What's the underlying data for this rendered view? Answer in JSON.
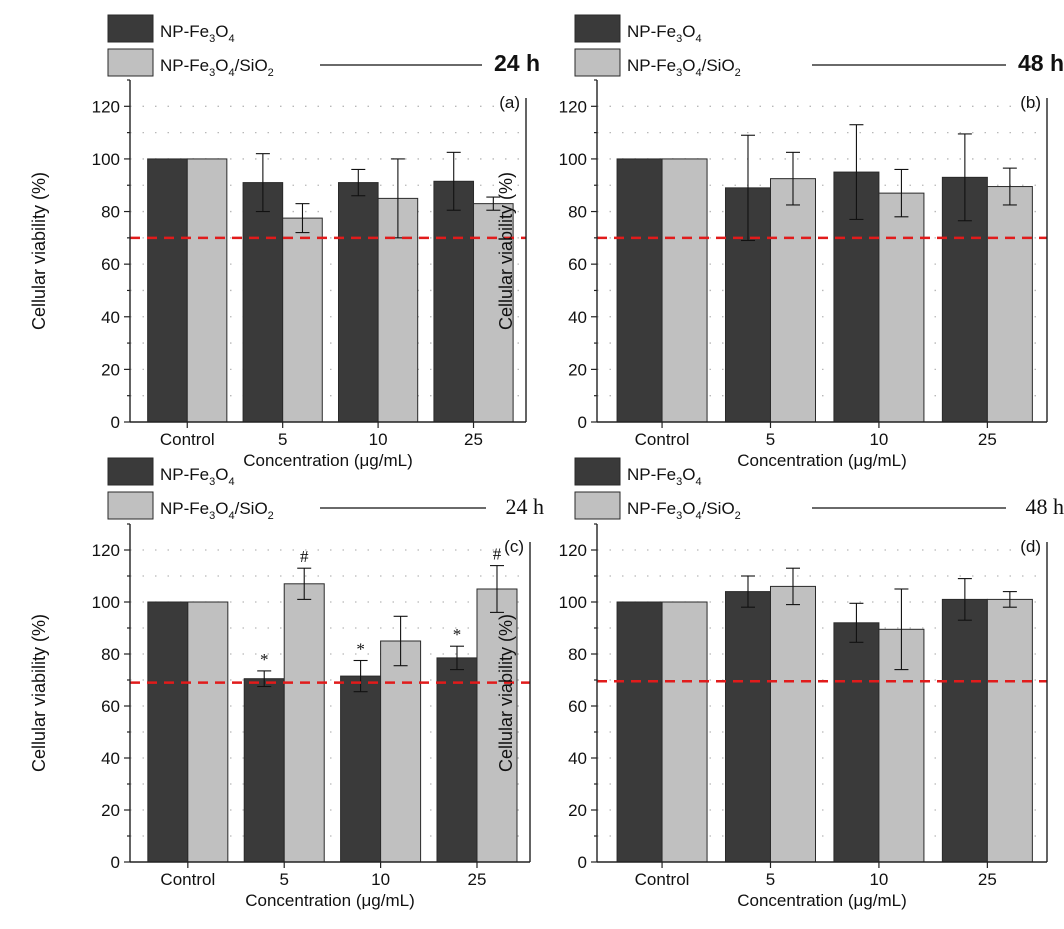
{
  "figure": {
    "colors": {
      "series_dark": "#3a3a3a",
      "series_light": "#c0c0c0",
      "threshold": "#e11b1b",
      "grid": "#b8b8b8",
      "axis": "#222222"
    }
  },
  "chart_data": [
    {
      "type": "bar",
      "panel": "(a)",
      "time_label": "24 h",
      "time_style": "sans",
      "categories": [
        "Control",
        "5",
        "10",
        "25"
      ],
      "series": [
        {
          "name": "NP-Fe3O4",
          "legend_main": "NP-Fe",
          "legend_sub1": "3",
          "legend_mid": "O",
          "legend_sub2": "4",
          "legend_tail": "",
          "legend_sub3": "",
          "values": [
            100,
            91,
            91,
            91.5
          ],
          "errors": [
            0,
            11,
            5,
            11
          ]
        },
        {
          "name": "NP-Fe3O4/SiO2",
          "legend_main": "NP-Fe",
          "legend_sub1": "3",
          "legend_mid": "O",
          "legend_sub2": "4",
          "legend_tail": "/SiO",
          "legend_sub3": "2",
          "values": [
            100,
            77.5,
            85,
            83
          ],
          "errors": [
            0,
            5.5,
            15,
            2.5
          ]
        }
      ],
      "annotations": [],
      "threshold": 70,
      "xlabel": "Concentration (μg/mL)",
      "ylabel": "Cellular viability (%)",
      "ylim": [
        0,
        130
      ],
      "yticks": [
        0,
        20,
        40,
        60,
        80,
        100,
        120
      ],
      "grid": true
    },
    {
      "type": "bar",
      "panel": "(b)",
      "time_label": "48 h",
      "time_style": "sans",
      "categories": [
        "Control",
        "5",
        "10",
        "25"
      ],
      "series": [
        {
          "name": "NP-Fe3O4",
          "legend_main": "NP-Fe",
          "legend_sub1": "3",
          "legend_mid": "O",
          "legend_sub2": "4",
          "legend_tail": "",
          "legend_sub3": "",
          "values": [
            100,
            89,
            95,
            93
          ],
          "errors": [
            0,
            20,
            18,
            16.5
          ]
        },
        {
          "name": "NP-Fe3O4/SiO2",
          "legend_main": "NP-Fe",
          "legend_sub1": "3",
          "legend_mid": "O",
          "legend_sub2": "4",
          "legend_tail": "/SiO",
          "legend_sub3": "2",
          "values": [
            100,
            92.5,
            87,
            89.5
          ],
          "errors": [
            0,
            10,
            9,
            7
          ]
        }
      ],
      "annotations": [],
      "threshold": 70,
      "xlabel": "Concentration (μg/mL)",
      "ylabel": "Cellular viability (%)",
      "ylim": [
        0,
        130
      ],
      "yticks": [
        0,
        20,
        40,
        60,
        80,
        100,
        120
      ],
      "grid": true
    },
    {
      "type": "bar",
      "panel": "(c)",
      "time_label": "24 h",
      "time_style": "serif",
      "categories": [
        "Control",
        "5",
        "10",
        "25"
      ],
      "series": [
        {
          "name": "NP-Fe3O4",
          "legend_main": "NP-Fe",
          "legend_sub1": "3",
          "legend_mid": "O",
          "legend_sub2": "4",
          "legend_tail": "",
          "legend_sub3": "",
          "values": [
            100,
            70.5,
            71.5,
            78.5
          ],
          "errors": [
            0,
            3,
            6,
            4.5
          ]
        },
        {
          "name": "NP-Fe3O4/SiO2",
          "legend_main": "NP-Fe",
          "legend_sub1": "3",
          "legend_mid": "O",
          "legend_sub2": "4",
          "legend_tail": "/SiO",
          "legend_sub3": "2",
          "values": [
            100,
            107,
            85,
            105
          ],
          "errors": [
            0,
            6,
            9.5,
            9
          ]
        }
      ],
      "annotations": [
        {
          "text": "*",
          "series": 0,
          "category": 1
        },
        {
          "text": "*",
          "series": 0,
          "category": 2
        },
        {
          "text": "*",
          "series": 0,
          "category": 3
        },
        {
          "text": "#",
          "series": 1,
          "category": 1
        },
        {
          "text": "#",
          "series": 1,
          "category": 3
        }
      ],
      "threshold": 69,
      "xlabel": "Concentration (μg/mL)",
      "ylabel": "Cellular viability (%)",
      "ylim": [
        0,
        130
      ],
      "yticks": [
        0,
        20,
        40,
        60,
        80,
        100,
        120
      ],
      "grid": true
    },
    {
      "type": "bar",
      "panel": "(d)",
      "time_label": "48 h",
      "time_style": "serif",
      "categories": [
        "Control",
        "5",
        "10",
        "25"
      ],
      "series": [
        {
          "name": "NP-Fe3O4",
          "legend_main": "NP-Fe",
          "legend_sub1": "3",
          "legend_mid": "O",
          "legend_sub2": "4",
          "legend_tail": "",
          "legend_sub3": "",
          "values": [
            100,
            104,
            92,
            101
          ],
          "errors": [
            0,
            6,
            7.5,
            8
          ]
        },
        {
          "name": "NP-Fe3O4/SiO2",
          "legend_main": "NP-Fe",
          "legend_sub1": "3",
          "legend_mid": "O",
          "legend_sub2": "4",
          "legend_tail": "/SiO",
          "legend_sub3": "2",
          "values": [
            100,
            106,
            89.5,
            101
          ],
          "errors": [
            0,
            7,
            15.5,
            3
          ]
        }
      ],
      "annotations": [],
      "threshold": 69.5,
      "xlabel": "Concentration (μg/mL)",
      "ylabel": "Cellular viability (%)",
      "ylim": [
        0,
        130
      ],
      "yticks": [
        0,
        20,
        40,
        60,
        80,
        100,
        120
      ],
      "grid": true
    }
  ]
}
